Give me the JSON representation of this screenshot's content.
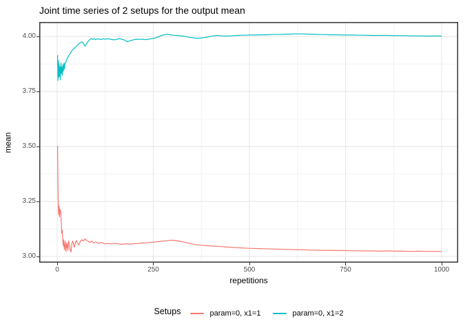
{
  "chart_data": {
    "type": "line",
    "title": "Joint time series of 2 setups for the output mean",
    "xlabel": "repetitions",
    "ylabel": "mean",
    "xlim": [
      -46.6,
      1043.0
    ],
    "ylim": [
      2.972,
      4.066
    ],
    "grid": "major+minor",
    "xticks": [
      {
        "value": 0,
        "label": "0"
      },
      {
        "value": 250,
        "label": "250"
      },
      {
        "value": 500,
        "label": "500"
      },
      {
        "value": 750,
        "label": "750"
      },
      {
        "value": 1000,
        "label": "1000"
      }
    ],
    "yticks": [
      {
        "value": 3.0,
        "label": "3.00"
      },
      {
        "value": 3.25,
        "label": "3.25"
      },
      {
        "value": 3.5,
        "label": "3.50"
      },
      {
        "value": 3.75,
        "label": "3.75"
      },
      {
        "value": 4.0,
        "label": "4.00"
      }
    ],
    "x_minor": [
      125,
      375,
      625,
      875
    ],
    "y_minor": [
      3.125,
      3.375,
      3.625,
      3.875
    ],
    "legend": {
      "title": "Setups",
      "position": "bottom"
    },
    "colors": {
      "grid_major": "#E4E4E4",
      "grid_minor": "#EFEFEF",
      "panel_border": "#333333",
      "tick_mark": "#333333",
      "tick_label": "#4D4D4D"
    },
    "series": [
      {
        "name": "param=0, x1=1",
        "color": "#F8766D",
        "points": [
          [
            1,
            3.503
          ],
          [
            2,
            3.33
          ],
          [
            3,
            3.22
          ],
          [
            4,
            3.19
          ],
          [
            5,
            3.23
          ],
          [
            6,
            3.18
          ],
          [
            7,
            3.215
          ],
          [
            8,
            3.2
          ],
          [
            9,
            3.21
          ],
          [
            10,
            3.175
          ],
          [
            11,
            3.14
          ],
          [
            12,
            3.105
          ],
          [
            13,
            3.12
          ],
          [
            14,
            3.095
          ],
          [
            15,
            3.06
          ],
          [
            16,
            3.05
          ],
          [
            17,
            3.075
          ],
          [
            18,
            3.045
          ],
          [
            19,
            3.03
          ],
          [
            20,
            3.055
          ],
          [
            21,
            3.07
          ],
          [
            22,
            3.04
          ],
          [
            23,
            3.022
          ],
          [
            24,
            3.05
          ],
          [
            25,
            3.062
          ],
          [
            26,
            3.04
          ],
          [
            27,
            3.052
          ],
          [
            28,
            3.028
          ],
          [
            29,
            3.06
          ],
          [
            30,
            3.07
          ],
          [
            32,
            3.05
          ],
          [
            34,
            3.028
          ],
          [
            36,
            3.02
          ],
          [
            38,
            3.056
          ],
          [
            40,
            3.07
          ],
          [
            42,
            3.062
          ],
          [
            44,
            3.042
          ],
          [
            46,
            3.05
          ],
          [
            48,
            3.066
          ],
          [
            50,
            3.072
          ],
          [
            53,
            3.06
          ],
          [
            56,
            3.052
          ],
          [
            60,
            3.068
          ],
          [
            64,
            3.076
          ],
          [
            68,
            3.07
          ],
          [
            72,
            3.08
          ],
          [
            76,
            3.074
          ],
          [
            80,
            3.07
          ],
          [
            85,
            3.064
          ],
          [
            90,
            3.07
          ],
          [
            95,
            3.061
          ],
          [
            100,
            3.066
          ],
          [
            108,
            3.06
          ],
          [
            116,
            3.063
          ],
          [
            124,
            3.057
          ],
          [
            132,
            3.06
          ],
          [
            140,
            3.057
          ],
          [
            150,
            3.06
          ],
          [
            160,
            3.057
          ],
          [
            170,
            3.055
          ],
          [
            180,
            3.058
          ],
          [
            190,
            3.056
          ],
          [
            200,
            3.058
          ],
          [
            210,
            3.059
          ],
          [
            220,
            3.061
          ],
          [
            230,
            3.062
          ],
          [
            240,
            3.064
          ],
          [
            250,
            3.065
          ],
          [
            260,
            3.067
          ],
          [
            270,
            3.069
          ],
          [
            280,
            3.071
          ],
          [
            290,
            3.073
          ],
          [
            300,
            3.074
          ],
          [
            310,
            3.072
          ],
          [
            320,
            3.069
          ],
          [
            330,
            3.065
          ],
          [
            340,
            3.061
          ],
          [
            350,
            3.057
          ],
          [
            360,
            3.054
          ],
          [
            375,
            3.051
          ],
          [
            390,
            3.049
          ],
          [
            405,
            3.047
          ],
          [
            420,
            3.046
          ],
          [
            435,
            3.044
          ],
          [
            450,
            3.042
          ],
          [
            465,
            3.04
          ],
          [
            480,
            3.039
          ],
          [
            500,
            3.037
          ],
          [
            520,
            3.036
          ],
          [
            540,
            3.035
          ],
          [
            560,
            3.034
          ],
          [
            580,
            3.033
          ],
          [
            600,
            3.032
          ],
          [
            620,
            3.031
          ],
          [
            640,
            3.03
          ],
          [
            660,
            3.029
          ],
          [
            680,
            3.028
          ],
          [
            700,
            3.028
          ],
          [
            720,
            3.027
          ],
          [
            740,
            3.027
          ],
          [
            760,
            3.026
          ],
          [
            780,
            3.026
          ],
          [
            800,
            3.025
          ],
          [
            820,
            3.025
          ],
          [
            840,
            3.024
          ],
          [
            860,
            3.025
          ],
          [
            880,
            3.024
          ],
          [
            900,
            3.024
          ],
          [
            920,
            3.023
          ],
          [
            940,
            3.024
          ],
          [
            960,
            3.023
          ],
          [
            980,
            3.023
          ],
          [
            1000,
            3.023
          ]
        ]
      },
      {
        "name": "param=0, x1=2",
        "color": "#00BFC4",
        "points": [
          [
            1,
            3.915
          ],
          [
            2,
            3.8
          ],
          [
            3,
            3.89
          ],
          [
            4,
            3.815
          ],
          [
            5,
            3.875
          ],
          [
            6,
            3.82
          ],
          [
            7,
            3.862
          ],
          [
            8,
            3.803
          ],
          [
            9,
            3.85
          ],
          [
            10,
            3.88
          ],
          [
            11,
            3.832
          ],
          [
            12,
            3.862
          ],
          [
            13,
            3.823
          ],
          [
            14,
            3.852
          ],
          [
            15,
            3.872
          ],
          [
            16,
            3.842
          ],
          [
            17,
            3.862
          ],
          [
            18,
            3.88
          ],
          [
            19,
            3.853
          ],
          [
            20,
            3.872
          ],
          [
            22,
            3.882
          ],
          [
            24,
            3.892
          ],
          [
            26,
            3.9
          ],
          [
            28,
            3.906
          ],
          [
            30,
            3.912
          ],
          [
            33,
            3.921
          ],
          [
            36,
            3.93
          ],
          [
            40,
            3.94
          ],
          [
            44,
            3.946
          ],
          [
            48,
            3.952
          ],
          [
            52,
            3.96
          ],
          [
            56,
            3.966
          ],
          [
            60,
            3.971
          ],
          [
            64,
            3.976
          ],
          [
            68,
            3.97
          ],
          [
            72,
            3.956
          ],
          [
            76,
            3.966
          ],
          [
            80,
            3.976
          ],
          [
            84,
            3.985
          ],
          [
            88,
            3.99
          ],
          [
            92,
            3.987
          ],
          [
            96,
            3.99
          ],
          [
            100,
            3.986
          ],
          [
            105,
            3.99
          ],
          [
            110,
            3.988
          ],
          [
            115,
            3.986
          ],
          [
            120,
            3.99
          ],
          [
            126,
            3.988
          ],
          [
            132,
            3.99
          ],
          [
            138,
            3.988
          ],
          [
            144,
            3.986
          ],
          [
            150,
            3.985
          ],
          [
            156,
            3.988
          ],
          [
            162,
            3.99
          ],
          [
            168,
            3.988
          ],
          [
            175,
            3.984
          ],
          [
            182,
            3.976
          ],
          [
            190,
            3.981
          ],
          [
            198,
            3.985
          ],
          [
            206,
            3.988
          ],
          [
            214,
            3.987
          ],
          [
            222,
            3.988
          ],
          [
            230,
            3.986
          ],
          [
            238,
            3.988
          ],
          [
            246,
            3.99
          ],
          [
            254,
            3.993
          ],
          [
            262,
            3.998
          ],
          [
            270,
            4.004
          ],
          [
            278,
            4.008
          ],
          [
            286,
            4.01
          ],
          [
            294,
            4.008
          ],
          [
            302,
            4.006
          ],
          [
            310,
            4.005
          ],
          [
            318,
            4.004
          ],
          [
            326,
            4.002
          ],
          [
            334,
            4.0
          ],
          [
            342,
            3.997
          ],
          [
            350,
            3.995
          ],
          [
            358,
            3.993
          ],
          [
            366,
            3.992
          ],
          [
            374,
            3.993
          ],
          [
            382,
            3.995
          ],
          [
            390,
            3.997
          ],
          [
            398,
            4.0
          ],
          [
            406,
            4.003
          ],
          [
            414,
            4.005
          ],
          [
            422,
            4.004
          ],
          [
            430,
            4.003
          ],
          [
            440,
            4.002
          ],
          [
            450,
            4.003
          ],
          [
            460,
            4.004
          ],
          [
            470,
            4.005
          ],
          [
            480,
            4.006
          ],
          [
            490,
            4.006
          ],
          [
            500,
            4.007
          ],
          [
            515,
            4.007
          ],
          [
            530,
            4.008
          ],
          [
            545,
            4.008
          ],
          [
            560,
            4.009
          ],
          [
            575,
            4.009
          ],
          [
            590,
            4.01
          ],
          [
            605,
            4.011
          ],
          [
            620,
            4.012
          ],
          [
            635,
            4.012
          ],
          [
            650,
            4.011
          ],
          [
            665,
            4.01
          ],
          [
            680,
            4.009
          ],
          [
            695,
            4.009
          ],
          [
            710,
            4.008
          ],
          [
            725,
            4.008
          ],
          [
            740,
            4.007
          ],
          [
            755,
            4.007
          ],
          [
            770,
            4.007
          ],
          [
            785,
            4.006
          ],
          [
            800,
            4.006
          ],
          [
            815,
            4.005
          ],
          [
            830,
            4.005
          ],
          [
            845,
            4.005
          ],
          [
            860,
            4.005
          ],
          [
            875,
            4.004
          ],
          [
            890,
            4.004
          ],
          [
            905,
            4.004
          ],
          [
            920,
            4.003
          ],
          [
            935,
            4.003
          ],
          [
            950,
            4.003
          ],
          [
            965,
            4.002
          ],
          [
            980,
            4.003
          ],
          [
            1000,
            4.002
          ]
        ]
      }
    ]
  }
}
